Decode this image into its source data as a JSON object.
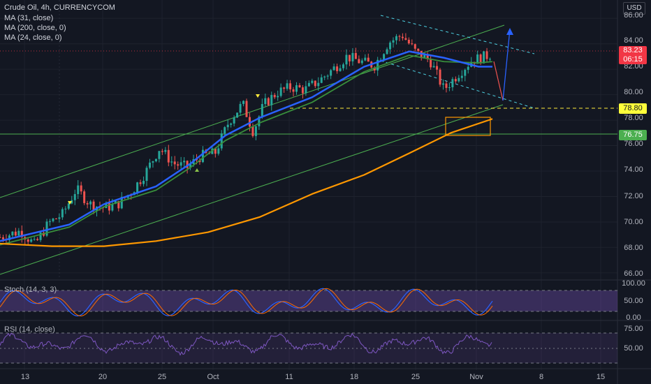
{
  "legend": {
    "symbol": "Crude Oil, 4h, CURRENCYCOM",
    "ma1": "MA (31, close)",
    "ma2": "MA (200, close, 0)",
    "ma3": "MA (24, close, 0)"
  },
  "axis": {
    "unit": "USD",
    "price_ticks": [
      "86.00",
      "84.00",
      "82.00",
      "80.00",
      "78.00",
      "76.00",
      "74.00",
      "72.00",
      "70.00",
      "68.00",
      "66.00"
    ],
    "stoch_ticks": [
      "100.00",
      "50.00",
      "0.00"
    ],
    "rsi_ticks": [
      "75.00",
      "50.00"
    ],
    "x_ticks": [
      "13",
      "20",
      "25",
      "Oct",
      "11",
      "18",
      "25",
      "Nov",
      "8",
      "15"
    ]
  },
  "price_tag": {
    "price": "83.23",
    "countdown": "06:15"
  },
  "levels": {
    "resistance": "78.80",
    "support": "76.75"
  },
  "panes": {
    "stoch_label": "Stoch (14, 3, 3)",
    "rsi_label": "RSI (14, close)"
  },
  "colors": {
    "background": "#131722",
    "up": "#26a69a",
    "down": "#ef5350",
    "ma31": "#2962ff",
    "ma200": "#ff9800",
    "ma24": "#388e3c",
    "channel": "#4caf50",
    "stoch_k": "#2962ff",
    "stoch_d": "#ff6d00",
    "rsi": "#7e57c2"
  },
  "chart_data": {
    "type": "line",
    "title": "Crude Oil, 4h, CURRENCYCOM",
    "ylabel": "USD",
    "ylim": [
      65.5,
      87
    ],
    "x_ticks": [
      "13",
      "20",
      "25",
      "Oct",
      "11",
      "18",
      "25",
      "Nov",
      "8",
      "15"
    ],
    "price_path": [
      [
        0,
        68.8
      ],
      [
        6,
        69.3
      ],
      [
        10,
        68.2
      ],
      [
        14,
        69.9
      ],
      [
        18,
        70.6
      ],
      [
        22,
        72.6
      ],
      [
        26,
        71.4
      ],
      [
        30,
        71.1
      ],
      [
        34,
        71.4
      ],
      [
        38,
        72.4
      ],
      [
        42,
        73.9
      ],
      [
        46,
        75.8
      ],
      [
        50,
        74.6
      ],
      [
        54,
        74.3
      ],
      [
        58,
        75.2
      ],
      [
        62,
        75.4
      ],
      [
        66,
        77.9
      ],
      [
        70,
        79.3
      ],
      [
        73,
        77.1
      ],
      [
        76,
        79.2
      ],
      [
        80,
        80.2
      ],
      [
        84,
        80.6
      ],
      [
        88,
        80.4
      ],
      [
        92,
        81.1
      ],
      [
        96,
        82.0
      ],
      [
        100,
        83.0
      ],
      [
        104,
        82.6
      ],
      [
        108,
        82.3
      ],
      [
        112,
        84.1
      ],
      [
        116,
        84.7
      ],
      [
        120,
        83.3
      ],
      [
        124,
        82.7
      ],
      [
        128,
        80.4
      ],
      [
        132,
        81.6
      ],
      [
        136,
        82.7
      ],
      [
        140,
        83.0
      ],
      [
        142,
        83.23
      ]
    ],
    "series": [
      {
        "name": "MA (31, close)",
        "values": [
          [
            0,
            68.5
          ],
          [
            20,
            69.8
          ],
          [
            30,
            71.4
          ],
          [
            45,
            72.8
          ],
          [
            55,
            74.6
          ],
          [
            65,
            76.8
          ],
          [
            75,
            78.2
          ],
          [
            90,
            79.8
          ],
          [
            105,
            82.2
          ],
          [
            118,
            83.4
          ],
          [
            128,
            82.9
          ],
          [
            138,
            82.2
          ],
          [
            142,
            82.2
          ]
        ]
      },
      {
        "name": "MA (200, close, 0)",
        "values": [
          [
            0,
            68.3
          ],
          [
            15,
            68.1
          ],
          [
            30,
            68.1
          ],
          [
            45,
            68.5
          ],
          [
            60,
            69.2
          ],
          [
            75,
            70.4
          ],
          [
            90,
            72.2
          ],
          [
            105,
            73.7
          ],
          [
            118,
            75.4
          ],
          [
            130,
            77.0
          ],
          [
            142,
            78.1
          ]
        ]
      },
      {
        "name": "MA (24, close, 0)",
        "values": [
          [
            0,
            68.2
          ],
          [
            20,
            69.6
          ],
          [
            30,
            71.2
          ],
          [
            45,
            72.5
          ],
          [
            55,
            74.3
          ],
          [
            65,
            76.4
          ],
          [
            75,
            77.8
          ],
          [
            90,
            79.4
          ],
          [
            105,
            81.8
          ],
          [
            118,
            83.1
          ],
          [
            128,
            82.6
          ],
          [
            138,
            82.5
          ],
          [
            142,
            82.6
          ]
        ]
      }
    ],
    "horizontal_levels": [
      78.8,
      76.75
    ],
    "stoch_ylim": [
      0,
      100
    ],
    "rsi_ylim": [
      25,
      80
    ]
  }
}
